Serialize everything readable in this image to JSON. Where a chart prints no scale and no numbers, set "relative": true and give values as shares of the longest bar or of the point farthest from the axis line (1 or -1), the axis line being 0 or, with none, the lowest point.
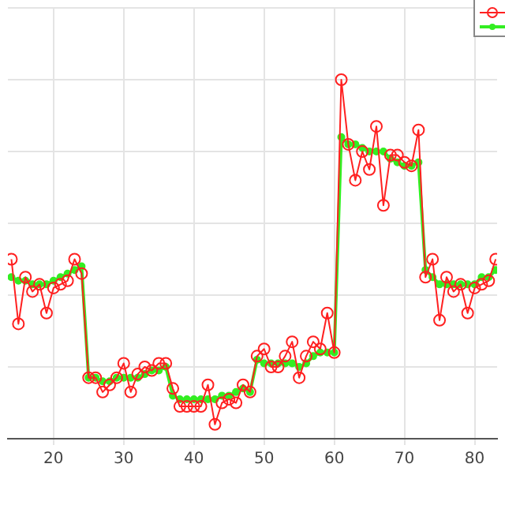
{
  "chart_data": {
    "type": "line",
    "relative": true,
    "x": [
      14,
      15,
      16,
      17,
      18,
      19,
      20,
      21,
      22,
      23,
      24,
      25,
      26,
      27,
      28,
      29,
      30,
      31,
      32,
      33,
      34,
      35,
      36,
      37,
      38,
      39,
      40,
      41,
      42,
      43,
      44,
      45,
      46,
      47,
      48,
      49,
      50,
      51,
      52,
      53,
      54,
      55,
      56,
      57,
      58,
      59,
      60,
      61,
      62,
      63,
      64,
      65,
      66,
      67,
      68,
      69,
      70,
      71,
      72,
      73,
      74,
      75,
      76,
      77,
      78,
      79,
      80,
      81,
      82,
      83
    ],
    "xlim": [
      13.5,
      83.2
    ],
    "xticks": [
      20,
      30,
      40,
      50,
      60,
      70,
      80
    ],
    "grid": true,
    "series": [
      {
        "color": "#ff2020",
        "marker": "circle",
        "values": [
          0.5,
          0.32,
          0.45,
          0.41,
          0.43,
          0.35,
          0.42,
          0.43,
          0.44,
          0.5,
          0.46,
          0.17,
          0.17,
          0.13,
          0.15,
          0.17,
          0.21,
          0.13,
          0.18,
          0.2,
          0.19,
          0.21,
          0.21,
          0.14,
          0.09,
          0.09,
          0.09,
          0.09,
          0.15,
          0.04,
          0.1,
          0.11,
          0.1,
          0.15,
          0.13,
          0.23,
          0.25,
          0.2,
          0.2,
          0.23,
          0.27,
          0.17,
          0.23,
          0.27,
          0.25,
          0.35,
          0.24,
          1.0,
          0.82,
          0.72,
          0.8,
          0.75,
          0.87,
          0.65,
          0.79,
          0.79,
          0.77,
          0.76,
          0.86,
          0.45,
          0.5,
          0.33,
          0.45,
          0.41,
          0.43,
          0.35,
          0.42,
          0.43,
          0.44,
          0.5
        ]
      },
      {
        "color": "#33ee22",
        "marker": "circle",
        "values": [
          0.45,
          0.44,
          0.44,
          0.43,
          0.43,
          0.43,
          0.44,
          0.45,
          0.46,
          0.47,
          0.48,
          0.17,
          0.17,
          0.16,
          0.16,
          0.17,
          0.17,
          0.17,
          0.17,
          0.18,
          0.19,
          0.19,
          0.2,
          0.12,
          0.11,
          0.11,
          0.11,
          0.11,
          0.11,
          0.11,
          0.12,
          0.12,
          0.13,
          0.14,
          0.13,
          0.22,
          0.21,
          0.21,
          0.21,
          0.21,
          0.21,
          0.2,
          0.21,
          0.23,
          0.24,
          0.24,
          0.24,
          0.84,
          0.82,
          0.82,
          0.81,
          0.8,
          0.8,
          0.8,
          0.78,
          0.77,
          0.76,
          0.76,
          0.77,
          0.47,
          0.45,
          0.43,
          0.43,
          0.43,
          0.43,
          0.43,
          0.43,
          0.45,
          0.45,
          0.47
        ]
      }
    ]
  }
}
